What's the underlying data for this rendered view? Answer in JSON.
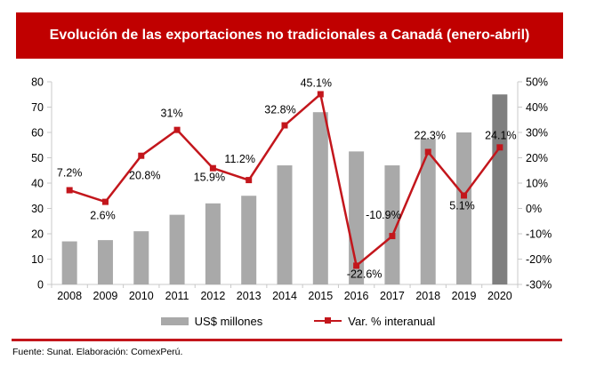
{
  "title": {
    "text": "Evolución de las exportaciones no tradicionales a Canadá (enero-abril)",
    "background_color": "#C00000",
    "text_color": "#ffffff"
  },
  "chart_data": {
    "type": "bar+line combo",
    "categories": [
      "2008",
      "2009",
      "2010",
      "2011",
      "2012",
      "2013",
      "2014",
      "2015",
      "2016",
      "2017",
      "2018",
      "2019",
      "2020"
    ],
    "series": [
      {
        "name": "US$ millones",
        "type": "bar",
        "axis": "left",
        "color": "#A9A9A9",
        "highlight_color": "#7F7F7F",
        "highlight_index": 12,
        "values": [
          17,
          17.5,
          21,
          27.5,
          32,
          35,
          47,
          68,
          52.5,
          47,
          57.5,
          60,
          75
        ]
      },
      {
        "name": "Var. % interanual",
        "type": "line",
        "axis": "right",
        "color": "#C3161C",
        "marker": "square",
        "values": [
          7.2,
          2.6,
          20.8,
          31,
          15.9,
          11.2,
          32.8,
          45.1,
          -22.6,
          -10.9,
          22.3,
          5.1,
          24.1
        ],
        "labels": [
          "7.2%",
          "2.6%",
          "20.8%",
          "31%",
          "15.9%",
          "11.2%",
          "32.8%",
          "45.1%",
          "-22.6%",
          "-10.9%",
          "22.3%",
          "5.1%",
          "24.1%"
        ],
        "label_offsets": [
          [
            0,
            -20
          ],
          [
            -3,
            15
          ],
          [
            4,
            22
          ],
          [
            -6,
            -19
          ],
          [
            -4,
            10
          ],
          [
            -10,
            -24
          ],
          [
            -5,
            -18
          ],
          [
            -5,
            -13
          ],
          [
            9,
            9
          ],
          [
            -10,
            -24
          ],
          [
            2,
            -19
          ],
          [
            -2,
            11
          ],
          [
            1,
            -14
          ]
        ]
      }
    ],
    "left_axis": {
      "min": 0,
      "max": 80,
      "step": 10,
      "ticks": [
        "0",
        "10",
        "20",
        "30",
        "40",
        "50",
        "60",
        "70",
        "80"
      ]
    },
    "right_axis": {
      "min": -30,
      "max": 50,
      "step": 10,
      "ticks": [
        "-30%",
        "-20%",
        "-10%",
        "0%",
        "10%",
        "20%",
        "30%",
        "40%",
        "50%"
      ]
    },
    "grid": false,
    "legend_position": "bottom",
    "axis_line_color": "#C9C9C9"
  },
  "footer": {
    "text": "Fuente: Sunat. Elaboración: ComexPerú."
  }
}
